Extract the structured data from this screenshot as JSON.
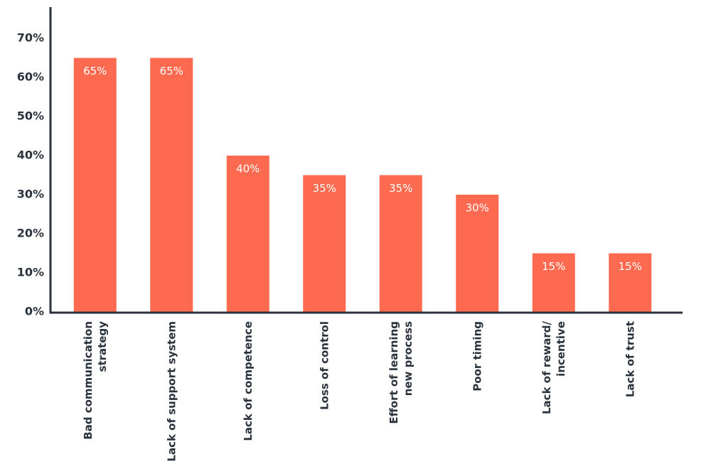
{
  "chart_data": {
    "type": "bar",
    "categories": [
      "Bad communication\nstrategy",
      "Lack of support system",
      "Lack of competence",
      "Loss of control",
      "Effort of learning\nnew process",
      "Poor timing",
      "Lack of reward/\nincentive",
      "Lack of trust"
    ],
    "values": [
      65,
      65,
      40,
      35,
      35,
      30,
      15,
      15
    ],
    "value_labels": [
      "65%",
      "65%",
      "40%",
      "35%",
      "35%",
      "30%",
      "15%",
      "15%"
    ],
    "color": "#fd6a4f",
    "ylim": [
      0,
      78
    ],
    "yticks": [
      {
        "value": 0,
        "label": "0%"
      },
      {
        "value": 10,
        "label": "10%"
      },
      {
        "value": 20,
        "label": "20%"
      },
      {
        "value": 30,
        "label": "30%"
      },
      {
        "value": 40,
        "label": "40%"
      },
      {
        "value": 50,
        "label": "50%"
      },
      {
        "value": 60,
        "label": "60%"
      },
      {
        "value": 70,
        "label": "70%"
      }
    ]
  }
}
